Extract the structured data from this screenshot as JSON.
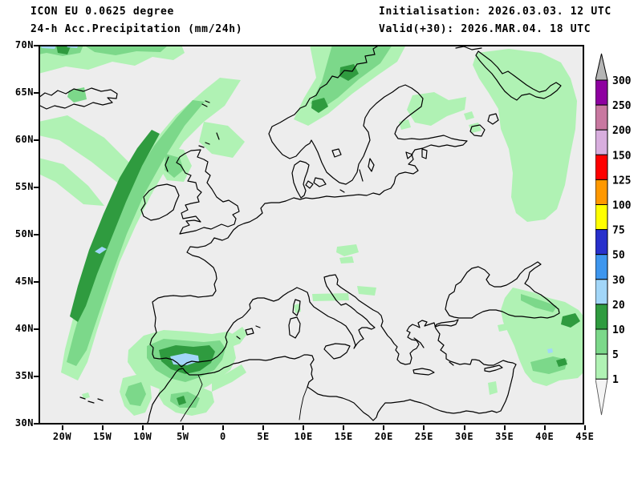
{
  "header": {
    "model_line": "ICON EU 0.0625 degree",
    "variable_line": "24-h Acc.Precipitation (mm/24h)",
    "init_line": "Initialisation: 2026.03.03. 12 UTC",
    "valid_line": "Valid(+30): 2026.MAR.04. 18 UTC"
  },
  "axes": {
    "lat_labels": [
      "70N",
      "65N",
      "60N",
      "55N",
      "50N",
      "45N",
      "40N",
      "35N",
      "30N"
    ],
    "lon_labels": [
      "20W",
      "15W",
      "10W",
      "5W",
      "0",
      "5E",
      "10E",
      "15E",
      "20E",
      "25E",
      "30E",
      "35E",
      "40E",
      "45E"
    ]
  },
  "colorbar": {
    "labels": [
      "300",
      "250",
      "200",
      "150",
      "125",
      "100",
      "75",
      "50",
      "30",
      "20",
      "10",
      "5",
      "1"
    ],
    "block_colors": [
      "#8e00a0",
      "#c878a0",
      "#d8aede",
      "#ff0000",
      "#ff9800",
      "#ffff00",
      "#2830cc",
      "#3e96ee",
      "#a2d6f8",
      "#2f9b3f",
      "#7cd88a",
      "#b0f2b4"
    ],
    "overflow_color": "#b5b5b5",
    "underflow_color": "#f4f4f4"
  },
  "map": {
    "background_color": "#ededed",
    "coastline_color": "#000000",
    "precip_light": "#b0f2b4",
    "precip_medium": "#7cd88a",
    "precip_dark": "#2f9b3f",
    "precip_blue": "#a2d6f8"
  }
}
